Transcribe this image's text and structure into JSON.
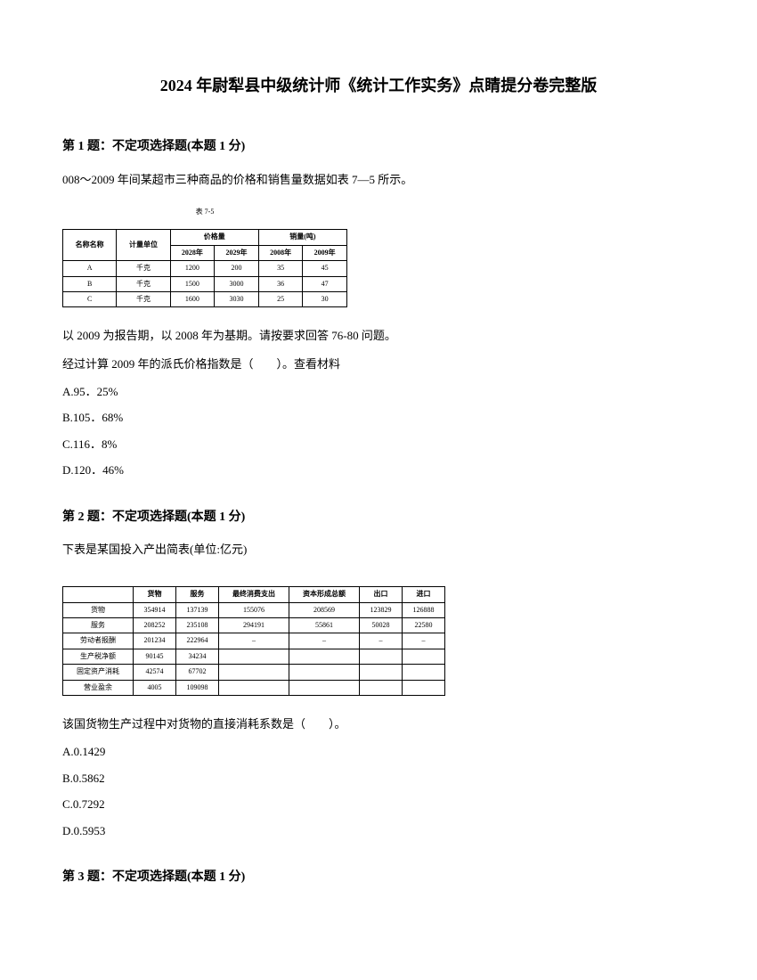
{
  "doc_title": "2024 年尉犁县中级统计师《统计工作实务》点睛提分卷完整版",
  "q1": {
    "header": "第 1 题：不定项选择题(本题 1 分)",
    "intro": "008～2009 年间某超市三种商品的价格和销售量数据如表 7—5 所示。",
    "table_caption": "表 7-5",
    "col_group1": "名称名称",
    "col_group2": "计量单位",
    "col_group3": "价格量",
    "col_group4": "销量(吨)",
    "sub_c1": "2028年",
    "sub_c2": "2029年",
    "sub_c3": "2008年",
    "sub_c4": "2009年",
    "rows": [
      [
        "A",
        "千克",
        "1200",
        "200",
        "35",
        "45"
      ],
      [
        "B",
        "千克",
        "1500",
        "3000",
        "36",
        "47"
      ],
      [
        "C",
        "千克",
        "1600",
        "3030",
        "25",
        "30"
      ]
    ],
    "after1": "以 2009 为报告期，以 2008 年为基期。请按要求回答 76-80 问题。",
    "after2": "经过计算 2009 年的派氏价格指数是（　　）。查看材料",
    "opt_a": "A.95．25%",
    "opt_b": "B.105．68%",
    "opt_c": "C.116．8%",
    "opt_d": "D.120．46%"
  },
  "q2": {
    "header": "第 2 题：不定项选择题(本题 1 分)",
    "intro": "下表是某国投入产出简表(单位:亿元)",
    "headers": [
      "",
      "货物",
      "服务",
      "最终消费支出",
      "资本形成总额",
      "出口",
      "进口"
    ],
    "rows": [
      [
        "货物",
        "354914",
        "137139",
        "155076",
        "208569",
        "123829",
        "126888"
      ],
      [
        "服务",
        "208252",
        "235108",
        "294191",
        "55861",
        "50028",
        "22580"
      ],
      [
        "劳动者报酬",
        "201234",
        "222964",
        "–",
        "–",
        "–",
        "–"
      ],
      [
        "生产税净额",
        "90145",
        "34234",
        "",
        "",
        "",
        ""
      ],
      [
        "固定资产消耗",
        "42574",
        "67702",
        "",
        "",
        "",
        ""
      ],
      [
        "营业盈余",
        "4005",
        "109098",
        "",
        "",
        "",
        ""
      ]
    ],
    "after1": "该国货物生产过程中对货物的直接消耗系数是（　　）。",
    "opt_a": "A.0.1429",
    "opt_b": "B.0.5862",
    "opt_c": "C.0.7292",
    "opt_d": "D.0.5953"
  },
  "q3": {
    "header": "第 3 题：不定项选择题(本题 1 分)"
  }
}
